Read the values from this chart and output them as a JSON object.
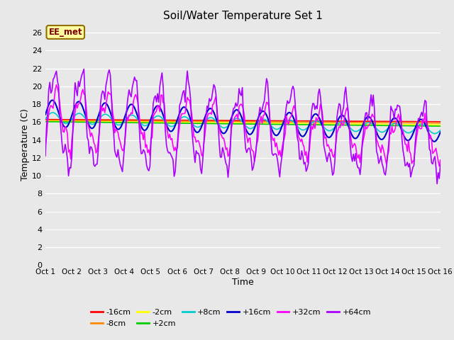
{
  "title": "Soil/Water Temperature Set 1",
  "xlabel": "Time",
  "ylabel": "Temperature (C)",
  "annotation": "EE_met",
  "annotation_color": "#800000",
  "annotation_bg": "#ffffa0",
  "annotation_border": "#907000",
  "ylim": [
    0,
    27
  ],
  "yticks": [
    0,
    2,
    4,
    6,
    8,
    10,
    12,
    14,
    16,
    18,
    20,
    22,
    24,
    26
  ],
  "xtick_labels": [
    "Oct 1",
    "Oct 2",
    "Oct 3",
    "Oct 4",
    "Oct 5",
    "Oct 6",
    "Oct 7",
    "Oct 8",
    "Oct 9",
    "Oct 10",
    "Oct 11",
    "Oct 12",
    "Oct 13",
    "Oct 14",
    "Oct 15",
    "Oct 16"
  ],
  "bg_color": "#e8e8e8",
  "grid_color": "#ffffff",
  "series_colors": {
    "-16cm": "#ff0000",
    "-8cm": "#ff8800",
    "-2cm": "#ffff00",
    "+2cm": "#00cc00",
    "+8cm": "#00cccc",
    "+16cm": "#0000cc",
    "+32cm": "#ff00ff",
    "+64cm": "#aa00ff"
  },
  "legend_order": [
    "-16cm",
    "-8cm",
    "-2cm",
    "+2cm",
    "+8cm",
    "+16cm",
    "+32cm",
    "+64cm"
  ]
}
